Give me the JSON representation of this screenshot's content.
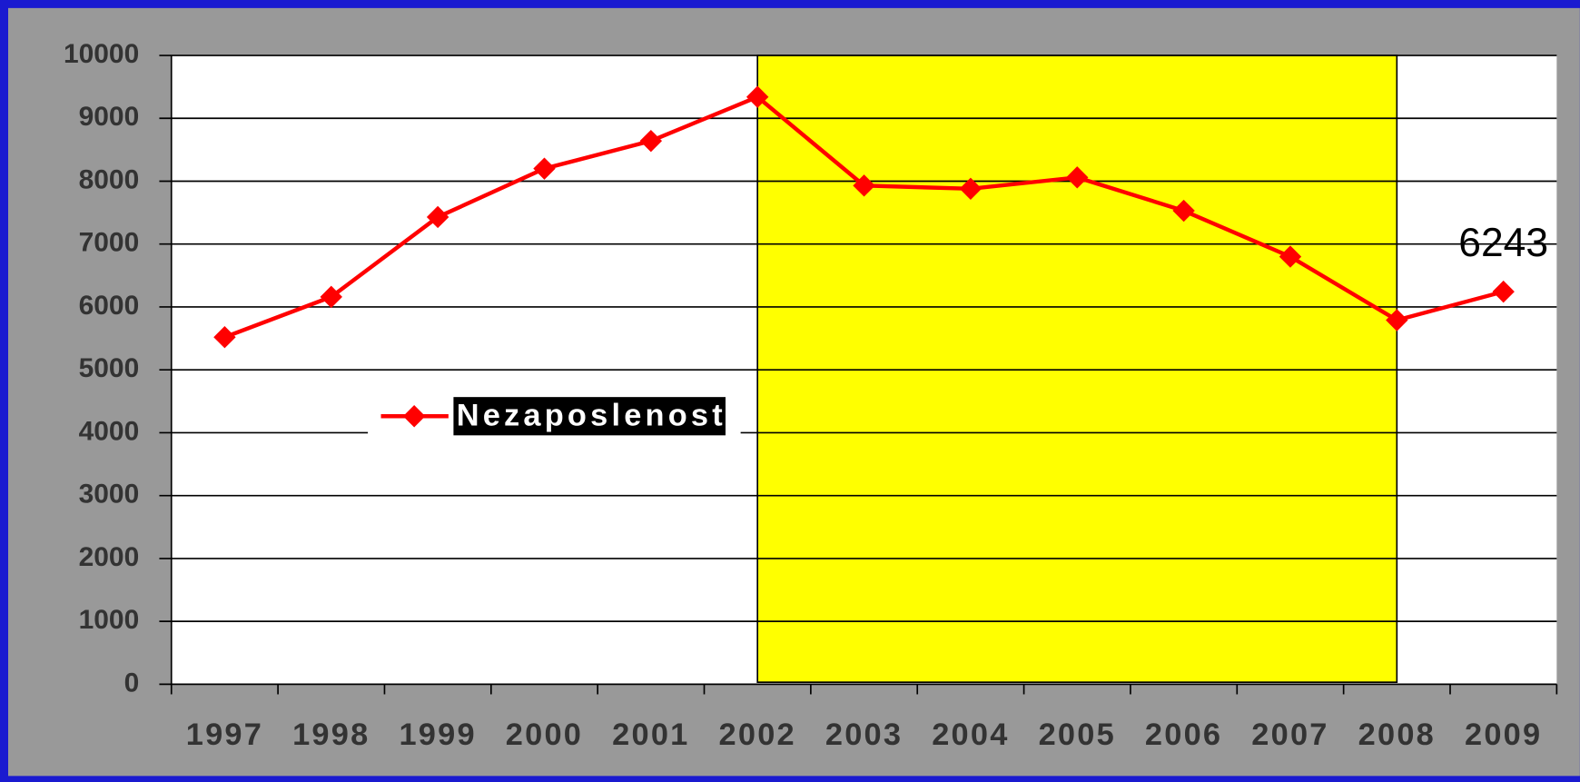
{
  "chart_data": {
    "type": "line",
    "categories": [
      "1997",
      "1998",
      "1999",
      "2000",
      "2001",
      "2002",
      "2003",
      "2004",
      "2005",
      "2006",
      "2007",
      "2008",
      "2009"
    ],
    "series": [
      {
        "name": "Nezaposlenost",
        "color": "#ff0000",
        "values": [
          5520,
          6160,
          7430,
          8200,
          8640,
          9340,
          7930,
          7880,
          8060,
          7530,
          6800,
          5790,
          6243
        ],
        "value_labels": [
          null,
          null,
          null,
          null,
          null,
          null,
          null,
          null,
          null,
          null,
          null,
          null,
          "6243"
        ]
      }
    ],
    "ylim": [
      0,
      10000
    ],
    "yticks": [
      0,
      1000,
      2000,
      3000,
      4000,
      5000,
      6000,
      7000,
      8000,
      9000,
      10000
    ],
    "grid": true,
    "highlight": {
      "from": "2002",
      "to": "2008",
      "color": "#ffff00"
    }
  }
}
